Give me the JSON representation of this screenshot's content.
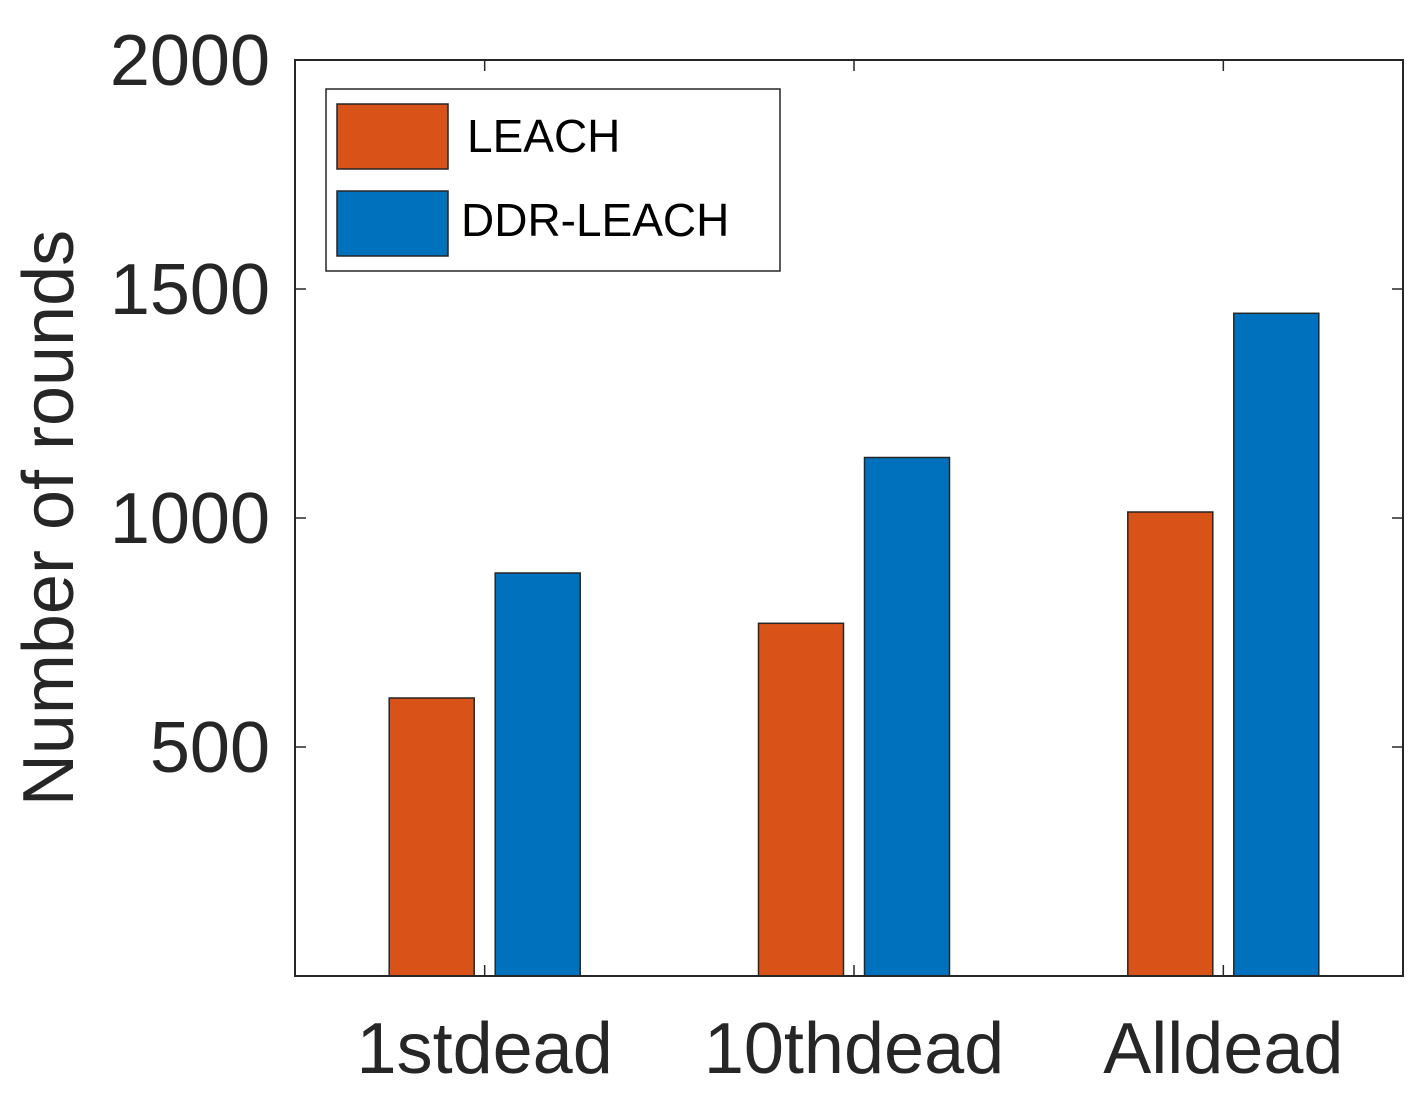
{
  "chart_data": {
    "type": "bar",
    "title": "",
    "xlabel": "",
    "ylabel": "Number of rounds",
    "categories": [
      "1stdead",
      "10thdead",
      "Alldead"
    ],
    "series": [
      {
        "name": "LEACH",
        "color": "#D95319",
        "values": [
          607,
          770,
          1013
        ]
      },
      {
        "name": "DDR-LEACH",
        "color": "#0072BD",
        "values": [
          880,
          1132,
          1447
        ]
      }
    ],
    "ylim": [
      0,
      2000
    ],
    "yticks": [
      500,
      1000,
      1500,
      2000
    ],
    "grid": false,
    "legend_position": "top-left"
  }
}
